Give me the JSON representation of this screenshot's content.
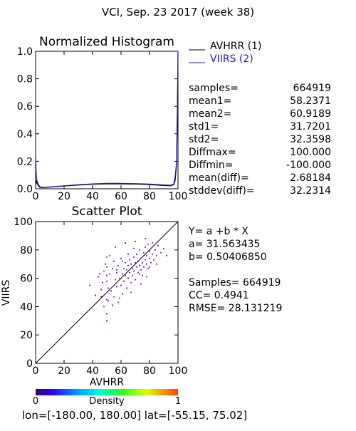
{
  "page_title": "VCI,  Sep. 23 2017 (week 38)",
  "histogram_title": "Normalized Histogram",
  "legend": [
    {
      "label": "AVHRR (1)",
      "color": "#000000"
    },
    {
      "label": "VIIRS (2)",
      "color": "#1f1fbf"
    }
  ],
  "stats": [
    {
      "label": "samples=",
      "value": "664919"
    },
    {
      "label": "mean1=",
      "value": "58.2371"
    },
    {
      "label": "mean2=",
      "value": "60.9189"
    },
    {
      "label": "std1=",
      "value": "31.7201"
    },
    {
      "label": "std2=",
      "value": "32.3598"
    },
    {
      "label": "Diffmax=",
      "value": "100.000"
    },
    {
      "label": "Diffmin=",
      "value": "-100.000"
    },
    {
      "label": "mean(diff)=",
      "value": "2.68184"
    },
    {
      "label": "stddev(diff)=",
      "value": "32.2314"
    }
  ],
  "scatter_title": "Scatter Plot",
  "regression": {
    "equation": "Y= a +b * X",
    "a_line": "a= 31.563435",
    "b_line": "b= 0.50406850",
    "samples_line": "Samples= 664919",
    "cc_line": "CC=  0.4941",
    "rmse_line": "RMSE= 28.131219"
  },
  "colorbar": {
    "label": "Density",
    "min_label": "0",
    "max_label": "1"
  },
  "footer": "lon=[-180.00, 180.00] lat=[-55.15, 75.02]",
  "chart_data": [
    {
      "type": "line",
      "title": "Normalized Histogram",
      "xlabel": "",
      "ylabel": "",
      "xlim": [
        0,
        100
      ],
      "ylim": [
        0,
        1
      ],
      "x_ticks": [
        "0",
        "20",
        "40",
        "60",
        "80",
        "100"
      ],
      "y_ticks": [
        "0.0",
        "0.2",
        "0.4",
        "0.6",
        "0.8",
        "1.0"
      ],
      "series": [
        {
          "name": "AVHRR (1)",
          "color": "#000000",
          "x": [
            0,
            0.5,
            1,
            2,
            3,
            5,
            10,
            20,
            30,
            40,
            50,
            60,
            70,
            80,
            90,
            95,
            97,
            98,
            99,
            99.5,
            100
          ],
          "y": [
            0.03,
            0.06,
            0.04,
            0.02,
            0.01,
            0.008,
            0.012,
            0.02,
            0.027,
            0.033,
            0.036,
            0.036,
            0.034,
            0.03,
            0.024,
            0.022,
            0.03,
            0.06,
            0.18,
            0.55,
            0.98
          ]
        },
        {
          "name": "VIIRS (2)",
          "color": "#1f1fbf",
          "x": [
            0,
            0.5,
            1,
            2,
            3,
            5,
            10,
            20,
            30,
            40,
            50,
            60,
            70,
            80,
            90,
            95,
            97,
            98,
            99,
            99.5,
            100
          ],
          "y": [
            0.26,
            0.09,
            0.06,
            0.03,
            0.015,
            0.01,
            0.014,
            0.022,
            0.03,
            0.036,
            0.04,
            0.04,
            0.038,
            0.034,
            0.028,
            0.026,
            0.035,
            0.09,
            0.2,
            0.5,
            1.0
          ]
        }
      ]
    },
    {
      "type": "scatter",
      "title": "Scatter Plot",
      "xlabel": "AVHRR",
      "ylabel": "VIIRS",
      "xlim": [
        0,
        100
      ],
      "ylim": [
        0,
        100
      ],
      "x_ticks": [
        "0",
        "20",
        "40",
        "60",
        "80",
        "100"
      ],
      "y_ticks": [
        "0",
        "20",
        "40",
        "60",
        "80",
        "100"
      ],
      "one_to_one_line": true,
      "points": [
        [
          38,
          55
        ],
        [
          42,
          48
        ],
        [
          44,
          61
        ],
        [
          46,
          52
        ],
        [
          48,
          40
        ],
        [
          49,
          70
        ],
        [
          50,
          35
        ],
        [
          50,
          58
        ],
        [
          51,
          44
        ],
        [
          52,
          63
        ],
        [
          53,
          51
        ],
        [
          54,
          67
        ],
        [
          55,
          47
        ],
        [
          55,
          72
        ],
        [
          56,
          59
        ],
        [
          57,
          54
        ],
        [
          57,
          64
        ],
        [
          58,
          43
        ],
        [
          58,
          69
        ],
        [
          59,
          60
        ],
        [
          60,
          55
        ],
        [
          60,
          74
        ],
        [
          61,
          63
        ],
        [
          61,
          49
        ],
        [
          62,
          67
        ],
        [
          62,
          58
        ],
        [
          63,
          71
        ],
        [
          63,
          62
        ],
        [
          64,
          53
        ],
        [
          64,
          66
        ],
        [
          65,
          69
        ],
        [
          65,
          60
        ],
        [
          66,
          73
        ],
        [
          66,
          64
        ],
        [
          67,
          57
        ],
        [
          67,
          70
        ],
        [
          68,
          67
        ],
        [
          68,
          62
        ],
        [
          69,
          75
        ],
        [
          69,
          65
        ],
        [
          70,
          71
        ],
        [
          70,
          59
        ],
        [
          71,
          68
        ],
        [
          71,
          77
        ],
        [
          72,
          64
        ],
        [
          72,
          72
        ],
        [
          73,
          69
        ],
        [
          73,
          80
        ],
        [
          74,
          66
        ],
        [
          74,
          74
        ],
        [
          75,
          71
        ],
        [
          75,
          62
        ],
        [
          76,
          78
        ],
        [
          76,
          68
        ],
        [
          77,
          73
        ],
        [
          77,
          82
        ],
        [
          78,
          70
        ],
        [
          78,
          76
        ],
        [
          79,
          67
        ],
        [
          79,
          84
        ],
        [
          80,
          74
        ],
        [
          80,
          79
        ],
        [
          81,
          71
        ],
        [
          82,
          77
        ],
        [
          82,
          85
        ],
        [
          83,
          73
        ],
        [
          84,
          80
        ],
        [
          85,
          76
        ],
        [
          86,
          83
        ],
        [
          88,
          78
        ],
        [
          90,
          81
        ],
        [
          92,
          76
        ],
        [
          45,
          63
        ],
        [
          47,
          57
        ],
        [
          52,
          76
        ],
        [
          54,
          41
        ],
        [
          56,
          82
        ],
        [
          59,
          46
        ],
        [
          63,
          85
        ],
        [
          67,
          50
        ],
        [
          70,
          86
        ],
        [
          74,
          56
        ],
        [
          78,
          61
        ],
        [
          46,
          47
        ],
        [
          48,
          65
        ],
        [
          51,
          53
        ],
        [
          57,
          66
        ],
        [
          61,
          72
        ],
        [
          65,
          77
        ],
        [
          69,
          81
        ],
        [
          73,
          63
        ],
        [
          77,
          88
        ],
        [
          80,
          68
        ],
        [
          85,
          70
        ],
        [
          50,
          50
        ],
        [
          50,
          45
        ],
        [
          50,
          62
        ],
        [
          50,
          68
        ],
        [
          50,
          30
        ],
        [
          50,
          75
        ]
      ]
    }
  ]
}
